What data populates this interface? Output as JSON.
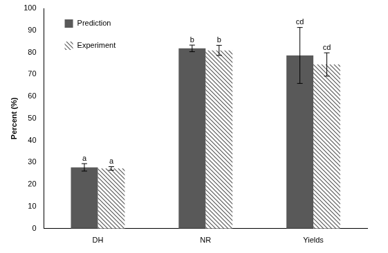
{
  "chart_data": {
    "type": "bar",
    "y_label": "Percent (%)",
    "categories": [
      "DH",
      "NR",
      "Yields"
    ],
    "series": [
      {
        "name": "Prediction",
        "color": "#595959",
        "values": [
          27.8,
          81.8,
          78.6
        ],
        "errors": [
          1.7,
          1.5,
          12.7
        ],
        "letters": [
          "a",
          "b",
          "cd"
        ]
      },
      {
        "name": "Experiment",
        "color": "#595959",
        "values": [
          27.3,
          80.9,
          74.5
        ],
        "errors": [
          0.8,
          2.3,
          5.3
        ],
        "letters": [
          "a",
          "b",
          "cd"
        ]
      }
    ],
    "ylim": [
      0,
      100
    ],
    "yticks": [
      0,
      10,
      20,
      30,
      40,
      50,
      60,
      70,
      80,
      90,
      100
    ],
    "grid": false,
    "legend": "upper left"
  }
}
